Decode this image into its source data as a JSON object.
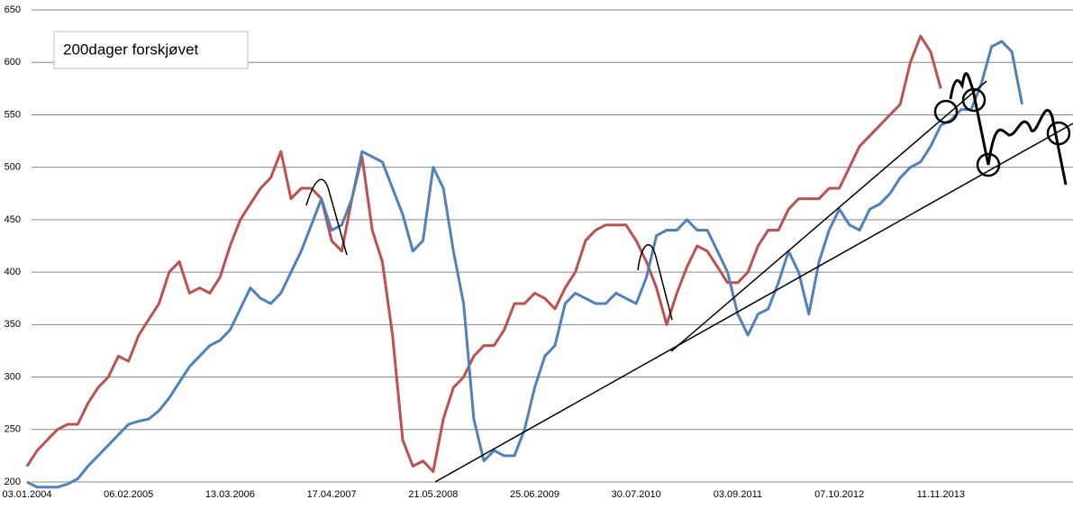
{
  "chart_data": {
    "type": "line",
    "annotation": "200dager forskjøvet",
    "categories": [
      "03.01.2004",
      null,
      null,
      null,
      null,
      null,
      null,
      null,
      null,
      null,
      "06.02.2005",
      null,
      null,
      null,
      null,
      null,
      null,
      null,
      null,
      null,
      "13.03.2006",
      null,
      null,
      null,
      null,
      null,
      null,
      null,
      null,
      null,
      "17.04.2007",
      null,
      null,
      null,
      null,
      null,
      null,
      null,
      null,
      null,
      "21.05.2008",
      null,
      null,
      null,
      null,
      null,
      null,
      null,
      null,
      null,
      "25.06.2009",
      null,
      null,
      null,
      null,
      null,
      null,
      null,
      null,
      null,
      "30.07.2010",
      null,
      null,
      null,
      null,
      null,
      null,
      null,
      null,
      null,
      "03.09.2011",
      null,
      null,
      null,
      null,
      null,
      null,
      null,
      null,
      null,
      "07.10.2012",
      null,
      null,
      null,
      null,
      null,
      null,
      null,
      null,
      null,
      "11.11.2013",
      null,
      null,
      null,
      null,
      null,
      null,
      null,
      null
    ],
    "series": [
      {
        "color": "#c0504d",
        "values": [
          215,
          230,
          240,
          250,
          255,
          255,
          275,
          290,
          300,
          320,
          315,
          340,
          355,
          370,
          400,
          410,
          380,
          385,
          380,
          395,
          425,
          450,
          465,
          480,
          490,
          515,
          470,
          480,
          480,
          470,
          430,
          420,
          470,
          510,
          440,
          410,
          340,
          240,
          215,
          220,
          210,
          260,
          290,
          300,
          320,
          330,
          330,
          345,
          370,
          370,
          380,
          375,
          365,
          385,
          400,
          430,
          440,
          445,
          445,
          445,
          430,
          410,
          385,
          350,
          380,
          405,
          425,
          420,
          405,
          390,
          390,
          400,
          425,
          440,
          440,
          460,
          470,
          470,
          470,
          480,
          480,
          500,
          520,
          530,
          540,
          550,
          560,
          600,
          625,
          610,
          575,
          null,
          null,
          null,
          null,
          null,
          null,
          null,
          null
        ]
      },
      {
        "color": "#4f81bd",
        "values": [
          200,
          195,
          195,
          195,
          198,
          203,
          215,
          225,
          235,
          245,
          255,
          258,
          260,
          268,
          280,
          295,
          310,
          320,
          330,
          335,
          345,
          365,
          385,
          375,
          370,
          380,
          400,
          420,
          445,
          470,
          440,
          445,
          470,
          515,
          510,
          505,
          480,
          455,
          420,
          430,
          500,
          480,
          420,
          370,
          260,
          220,
          230,
          225,
          225,
          250,
          290,
          320,
          330,
          370,
          380,
          375,
          370,
          370,
          380,
          375,
          370,
          395,
          435,
          440,
          440,
          450,
          440,
          440,
          420,
          400,
          360,
          340,
          360,
          365,
          390,
          420,
          400,
          360,
          410,
          440,
          460,
          445,
          440,
          460,
          465,
          475,
          490,
          500,
          505,
          520,
          540,
          545,
          555,
          555,
          580,
          615,
          620,
          610,
          560
        ]
      }
    ],
    "ylim": [
      200,
      650
    ],
    "yticks": [
      200,
      250,
      300,
      350,
      400,
      450,
      500,
      550,
      600,
      650
    ],
    "grid": true
  }
}
